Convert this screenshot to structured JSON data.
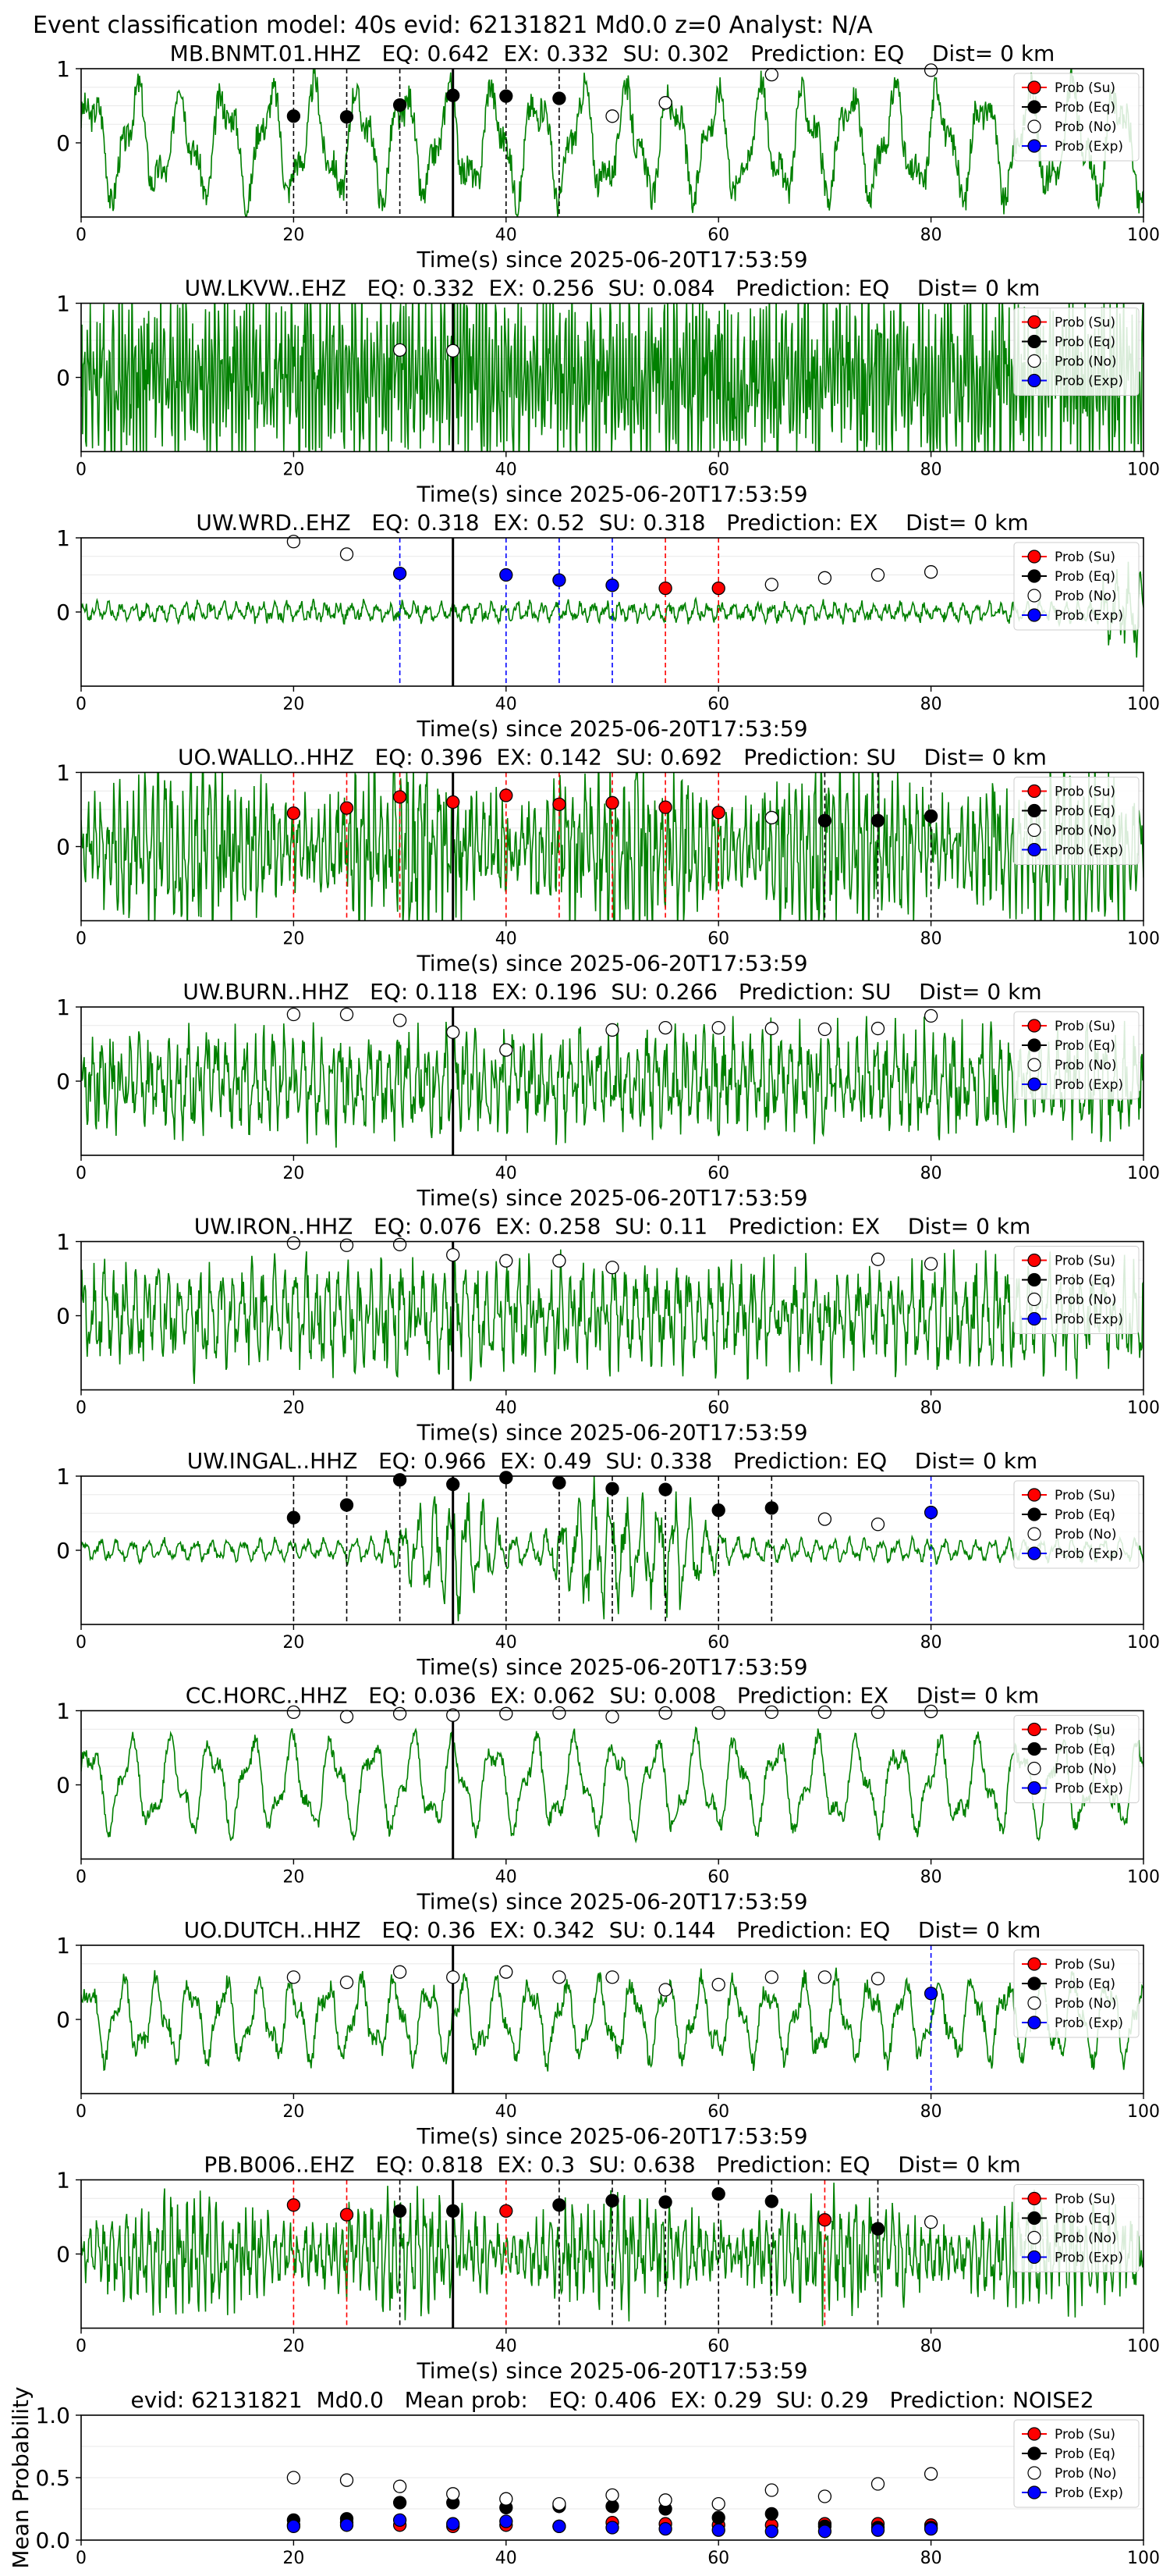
{
  "figure_title": "Event classification model: 40s evid: 62131821 Md0.0 z=0 Analyst: N/A",
  "colors": {
    "waveform": "#008000",
    "su": "#ff0000",
    "eq": "#000000",
    "no": "#ffffff",
    "exp": "#0000ff",
    "vline_su": "#ff0000",
    "vline_eq": "#000000",
    "vline_exp": "#0000ff",
    "event_line": "#000000"
  },
  "legend": {
    "placement": "top-right",
    "entries": [
      "Prob (Su)",
      "Prob (Eq)",
      "Prob (No)",
      "Prob (Exp)"
    ]
  },
  "chart_data": [
    {
      "type": "scatter",
      "label": "MB.BNMT.01.HHZ   EQ: 0.642  EX: 0.332  SU: 0.302   Prediction: EQ    Dist= 0 km",
      "xlabel": "Time(s) since 2025-06-20T17:53:59",
      "ylabel": "",
      "xlim": [
        0,
        100
      ],
      "ylim": [
        -1,
        1
      ],
      "xticks": [
        0,
        20,
        40,
        60,
        80,
        100
      ],
      "yticks": [
        0,
        1
      ],
      "event_time": 35,
      "waveform": {
        "style": "low-frequency",
        "amplitude": 0.85,
        "period": 4.2,
        "noise": 0.25
      },
      "series": [
        {
          "name": "Prob (Su)",
          "x": [],
          "y": []
        },
        {
          "name": "Prob (Eq)",
          "x": [
            20,
            25,
            30,
            35,
            40,
            45
          ],
          "y": [
            0.36,
            0.35,
            0.51,
            0.64,
            0.63,
            0.6
          ]
        },
        {
          "name": "Prob (No)",
          "x": [
            50,
            55,
            65,
            80
          ],
          "y": [
            0.36,
            0.54,
            0.92,
            0.98
          ]
        },
        {
          "name": "Prob (Exp)",
          "x": [],
          "y": []
        }
      ]
    },
    {
      "type": "scatter",
      "label": "UW.LKVW..EHZ   EQ: 0.332  EX: 0.256  SU: 0.084   Prediction: EQ    Dist= 0 km",
      "xlabel": "Time(s) since 2025-06-20T17:53:59",
      "ylabel": "",
      "xlim": [
        0,
        100
      ],
      "ylim": [
        -1,
        1
      ],
      "xticks": [
        0,
        20,
        40,
        60,
        80,
        100
      ],
      "yticks": [
        0,
        1
      ],
      "event_time": 35,
      "waveform": {
        "style": "dense-noise",
        "amplitude": 0.95,
        "period": 0.3,
        "noise": 0.9
      },
      "series": [
        {
          "name": "Prob (Su)",
          "x": [],
          "y": []
        },
        {
          "name": "Prob (Eq)",
          "x": [],
          "y": []
        },
        {
          "name": "Prob (No)",
          "x": [
            30,
            35
          ],
          "y": [
            0.37,
            0.36
          ]
        },
        {
          "name": "Prob (Exp)",
          "x": [],
          "y": []
        }
      ]
    },
    {
      "type": "scatter",
      "label": "UW.WRD..EHZ   EQ: 0.318  EX: 0.52  SU: 0.318   Prediction: EX    Dist= 0 km",
      "xlabel": "Time(s) since 2025-06-20T17:53:59",
      "ylabel": "",
      "xlim": [
        0,
        100
      ],
      "ylim": [
        -1,
        1
      ],
      "xticks": [
        0,
        20,
        40,
        60,
        80,
        100
      ],
      "yticks": [
        0,
        1
      ],
      "event_time": 35,
      "waveform": {
        "style": "quiet",
        "amplitude": 0.12,
        "period": 1.2,
        "noise": 0.08
      },
      "series": [
        {
          "name": "Prob (Su)",
          "x": [
            55,
            60
          ],
          "y": [
            0.32,
            0.32
          ]
        },
        {
          "name": "Prob (Eq)",
          "x": [],
          "y": []
        },
        {
          "name": "Prob (No)",
          "x": [
            20,
            25,
            65,
            70,
            75,
            80
          ],
          "y": [
            0.95,
            0.78,
            0.37,
            0.46,
            0.5,
            0.54
          ]
        },
        {
          "name": "Prob (Exp)",
          "x": [
            30,
            40,
            45,
            50
          ],
          "y": [
            0.52,
            0.5,
            0.43,
            0.36
          ]
        }
      ]
    },
    {
      "type": "scatter",
      "label": "UO.WALLO..HHZ   EQ: 0.396  EX: 0.142  SU: 0.692   Prediction: SU    Dist= 0 km",
      "xlabel": "Time(s) since 2025-06-20T17:53:59",
      "ylabel": "",
      "xlim": [
        0,
        100
      ],
      "ylim": [
        -1,
        1
      ],
      "xticks": [
        0,
        20,
        40,
        60,
        80,
        100
      ],
      "yticks": [
        0,
        1
      ],
      "event_time": 35,
      "waveform": {
        "style": "bursty",
        "amplitude": 0.7,
        "period": 0.6,
        "noise": 0.55
      },
      "series": [
        {
          "name": "Prob (Su)",
          "x": [
            20,
            25,
            30,
            35,
            40,
            45,
            50,
            55,
            60
          ],
          "y": [
            0.45,
            0.52,
            0.67,
            0.6,
            0.69,
            0.57,
            0.59,
            0.53,
            0.46
          ]
        },
        {
          "name": "Prob (Eq)",
          "x": [
            70,
            75,
            80
          ],
          "y": [
            0.35,
            0.35,
            0.41
          ]
        },
        {
          "name": "Prob (No)",
          "x": [
            65
          ],
          "y": [
            0.39
          ]
        },
        {
          "name": "Prob (Exp)",
          "x": [],
          "y": []
        }
      ]
    },
    {
      "type": "scatter",
      "label": "UW.BURN..HHZ   EQ: 0.118  EX: 0.196  SU: 0.266   Prediction: SU    Dist= 0 km",
      "xlabel": "Time(s) since 2025-06-20T17:53:59",
      "ylabel": "",
      "xlim": [
        0,
        100
      ],
      "ylim": [
        -1,
        1
      ],
      "xticks": [
        0,
        20,
        40,
        60,
        80,
        100
      ],
      "yticks": [
        0,
        1
      ],
      "event_time": 35,
      "waveform": {
        "style": "medium",
        "amplitude": 0.55,
        "period": 0.9,
        "noise": 0.45
      },
      "series": [
        {
          "name": "Prob (Su)",
          "x": [],
          "y": []
        },
        {
          "name": "Prob (Eq)",
          "x": [],
          "y": []
        },
        {
          "name": "Prob (No)",
          "x": [
            20,
            25,
            30,
            35,
            40,
            50,
            55,
            60,
            65,
            70,
            75,
            80
          ],
          "y": [
            0.9,
            0.9,
            0.82,
            0.66,
            0.42,
            0.69,
            0.72,
            0.72,
            0.71,
            0.7,
            0.71,
            0.88
          ]
        },
        {
          "name": "Prob (Exp)",
          "x": [],
          "y": []
        }
      ]
    },
    {
      "type": "scatter",
      "label": "UW.IRON..HHZ   EQ: 0.076  EX: 0.258  SU: 0.11   Prediction: EX    Dist= 0 km",
      "xlabel": "Time(s) since 2025-06-20T17:53:59",
      "ylabel": "",
      "xlim": [
        0,
        100
      ],
      "ylim": [
        -1,
        1
      ],
      "xticks": [
        0,
        20,
        40,
        60,
        80,
        100
      ],
      "yticks": [
        0,
        1
      ],
      "event_time": 35,
      "waveform": {
        "style": "medium",
        "amplitude": 0.6,
        "period": 1.0,
        "noise": 0.45
      },
      "series": [
        {
          "name": "Prob (Su)",
          "x": [],
          "y": []
        },
        {
          "name": "Prob (Eq)",
          "x": [],
          "y": []
        },
        {
          "name": "Prob (No)",
          "x": [
            20,
            25,
            30,
            35,
            40,
            45,
            50,
            75,
            80
          ],
          "y": [
            0.98,
            0.95,
            0.96,
            0.82,
            0.74,
            0.74,
            0.65,
            0.76,
            0.7
          ]
        },
        {
          "name": "Prob (Exp)",
          "x": [],
          "y": []
        }
      ]
    },
    {
      "type": "scatter",
      "label": "UW.INGAL..HHZ   EQ: 0.966  EX: 0.49  SU: 0.338   Prediction: EQ    Dist= 0 km",
      "xlabel": "Time(s) since 2025-06-20T17:53:59",
      "ylabel": "",
      "xlim": [
        0,
        100
      ],
      "ylim": [
        -1,
        1
      ],
      "xticks": [
        0,
        20,
        40,
        60,
        80,
        100
      ],
      "yticks": [
        0,
        1
      ],
      "event_time": 35,
      "waveform": {
        "style": "quiet-events",
        "amplitude": 0.15,
        "period": 1.5,
        "noise": 0.06
      },
      "series": [
        {
          "name": "Prob (Su)",
          "x": [],
          "y": []
        },
        {
          "name": "Prob (Eq)",
          "x": [
            20,
            25,
            30,
            35,
            40,
            45,
            50,
            55,
            60,
            65
          ],
          "y": [
            0.44,
            0.61,
            0.95,
            0.89,
            0.98,
            0.91,
            0.83,
            0.82,
            0.54,
            0.57
          ]
        },
        {
          "name": "Prob (No)",
          "x": [
            70,
            75
          ],
          "y": [
            0.42,
            0.35
          ]
        },
        {
          "name": "Prob (Exp)",
          "x": [
            80
          ],
          "y": [
            0.51
          ]
        }
      ]
    },
    {
      "type": "scatter",
      "label": "CC.HORC..HHZ   EQ: 0.036  EX: 0.062  SU: 0.008   Prediction: EX    Dist= 0 km",
      "xlabel": "Time(s) since 2025-06-20T17:53:59",
      "ylabel": "",
      "xlim": [
        0,
        100
      ],
      "ylim": [
        -1,
        1
      ],
      "xticks": [
        0,
        20,
        40,
        60,
        80,
        100
      ],
      "yticks": [
        0,
        1
      ],
      "event_time": 35,
      "waveform": {
        "style": "low-frequency",
        "amplitude": 0.7,
        "period": 3.8,
        "noise": 0.12
      },
      "series": [
        {
          "name": "Prob (Su)",
          "x": [],
          "y": []
        },
        {
          "name": "Prob (Eq)",
          "x": [],
          "y": []
        },
        {
          "name": "Prob (No)",
          "x": [
            20,
            25,
            30,
            35,
            40,
            45,
            50,
            55,
            60,
            65,
            70,
            75,
            80
          ],
          "y": [
            0.98,
            0.92,
            0.96,
            0.94,
            0.96,
            0.97,
            0.92,
            0.97,
            0.97,
            0.98,
            0.98,
            0.98,
            0.99
          ]
        },
        {
          "name": "Prob (Exp)",
          "x": [],
          "y": []
        }
      ]
    },
    {
      "type": "scatter",
      "label": "UO.DUTCH..HHZ   EQ: 0.36  EX: 0.342  SU: 0.144   Prediction: EQ    Dist= 0 km",
      "xlabel": "Time(s) since 2025-06-20T17:53:59",
      "ylabel": "",
      "xlim": [
        0,
        100
      ],
      "ylim": [
        -1,
        1
      ],
      "xticks": [
        0,
        20,
        40,
        60,
        80,
        100
      ],
      "yticks": [
        0,
        1
      ],
      "event_time": 35,
      "waveform": {
        "style": "low-frequency",
        "amplitude": 0.6,
        "period": 3.2,
        "noise": 0.15
      },
      "series": [
        {
          "name": "Prob (Su)",
          "x": [],
          "y": []
        },
        {
          "name": "Prob (Eq)",
          "x": [],
          "y": []
        },
        {
          "name": "Prob (No)",
          "x": [
            20,
            25,
            30,
            35,
            40,
            45,
            50,
            55,
            60,
            65,
            70,
            75
          ],
          "y": [
            0.57,
            0.5,
            0.64,
            0.57,
            0.64,
            0.57,
            0.57,
            0.4,
            0.47,
            0.57,
            0.57,
            0.55
          ]
        },
        {
          "name": "Prob (Exp)",
          "x": [
            80
          ],
          "y": [
            0.35
          ]
        }
      ]
    },
    {
      "type": "scatter",
      "label": "PB.B006..EHZ   EQ: 0.818  EX: 0.3  SU: 0.638   Prediction: EQ    Dist= 0 km",
      "xlabel": "Time(s) since 2025-06-20T17:53:59",
      "ylabel": "",
      "xlim": [
        0,
        100
      ],
      "ylim": [
        -1,
        1
      ],
      "xticks": [
        0,
        20,
        40,
        60,
        80,
        100
      ],
      "yticks": [
        0,
        1
      ],
      "event_time": 35,
      "waveform": {
        "style": "bursty",
        "amplitude": 0.45,
        "period": 0.7,
        "noise": 0.35
      },
      "series": [
        {
          "name": "Prob (Su)",
          "x": [
            20,
            25,
            40,
            70
          ],
          "y": [
            0.66,
            0.53,
            0.58,
            0.46
          ]
        },
        {
          "name": "Prob (Eq)",
          "x": [
            30,
            35,
            45,
            50,
            55,
            60,
            65,
            75
          ],
          "y": [
            0.58,
            0.58,
            0.66,
            0.72,
            0.7,
            0.81,
            0.71,
            0.34
          ]
        },
        {
          "name": "Prob (No)",
          "x": [
            80
          ],
          "y": [
            0.43
          ]
        },
        {
          "name": "Prob (Exp)",
          "x": [],
          "y": []
        }
      ]
    },
    {
      "type": "scatter",
      "label": "evid: 62131821  Md0.0   Mean prob:   EQ: 0.406  EX: 0.29  SU: 0.29   Prediction: NOISE2",
      "xlabel": "",
      "ylabel": "Mean Probability",
      "xlim": [
        0,
        100
      ],
      "ylim": [
        0,
        1
      ],
      "xticks": [
        0,
        20,
        40,
        60,
        80,
        100
      ],
      "yticks": [
        0.0,
        0.5,
        1.0
      ],
      "series": [
        {
          "name": "Prob (Su)",
          "x": [
            20,
            25,
            30,
            35,
            40,
            45,
            50,
            55,
            60,
            65,
            70,
            75,
            80
          ],
          "y": [
            0.12,
            0.14,
            0.12,
            0.11,
            0.12,
            0.11,
            0.14,
            0.13,
            0.12,
            0.12,
            0.13,
            0.13,
            0.12
          ]
        },
        {
          "name": "Prob (Eq)",
          "x": [
            20,
            25,
            30,
            35,
            40,
            45,
            50,
            55,
            60,
            65,
            70,
            75,
            80
          ],
          "y": [
            0.16,
            0.17,
            0.3,
            0.3,
            0.26,
            0.27,
            0.27,
            0.25,
            0.18,
            0.21,
            0.11,
            0.1,
            0.1
          ]
        },
        {
          "name": "Prob (No)",
          "x": [
            20,
            25,
            30,
            35,
            40,
            45,
            50,
            55,
            60,
            65,
            70,
            75,
            80
          ],
          "y": [
            0.5,
            0.48,
            0.43,
            0.37,
            0.33,
            0.29,
            0.36,
            0.32,
            0.29,
            0.4,
            0.35,
            0.45,
            0.53
          ]
        },
        {
          "name": "Prob (Exp)",
          "x": [
            20,
            25,
            30,
            35,
            40,
            45,
            50,
            55,
            60,
            65,
            70,
            75,
            80
          ],
          "y": [
            0.11,
            0.12,
            0.16,
            0.13,
            0.15,
            0.11,
            0.1,
            0.09,
            0.08,
            0.07,
            0.07,
            0.08,
            0.09
          ]
        }
      ]
    }
  ]
}
